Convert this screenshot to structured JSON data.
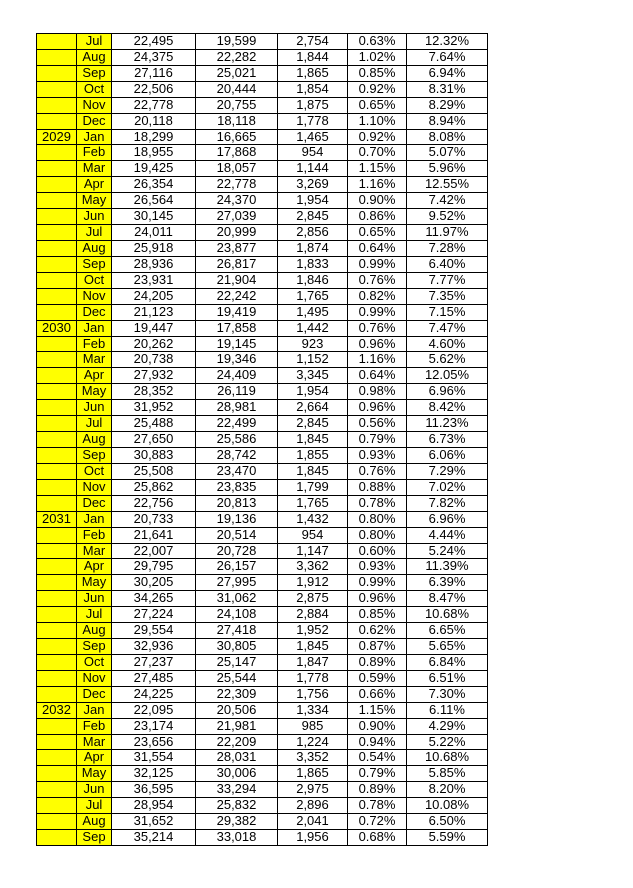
{
  "sheet": {
    "description": "Monthly data table with yellow year and month key columns",
    "highlight_color": "#FFFF00",
    "border_color": "#000000",
    "text_color": "#000000",
    "background_color": "#FFFFFF",
    "columns": [
      "year",
      "month",
      "value-1",
      "value-2",
      "value-3",
      "percent-1",
      "percent-2"
    ],
    "years_shown": [
      "2029",
      "2030",
      "2031",
      "2032"
    ],
    "rows": [
      [
        "",
        "Jul",
        "22,495",
        "19,599",
        "2,754",
        "0.63%",
        "12.32%"
      ],
      [
        "",
        "Aug",
        "24,375",
        "22,282",
        "1,844",
        "1.02%",
        "7.64%"
      ],
      [
        "",
        "Sep",
        "27,116",
        "25,021",
        "1,865",
        "0.85%",
        "6.94%"
      ],
      [
        "",
        "Oct",
        "22,506",
        "20,444",
        "1,854",
        "0.92%",
        "8.31%"
      ],
      [
        "",
        "Nov",
        "22,778",
        "20,755",
        "1,875",
        "0.65%",
        "8.29%"
      ],
      [
        "",
        "Dec",
        "20,118",
        "18,118",
        "1,778",
        "1.10%",
        "8.94%"
      ],
      [
        "2029",
        "Jan",
        "18,299",
        "16,665",
        "1,465",
        "0.92%",
        "8.08%"
      ],
      [
        "",
        "Feb",
        "18,955",
        "17,868",
        "954",
        "0.70%",
        "5.07%"
      ],
      [
        "",
        "Mar",
        "19,425",
        "18,057",
        "1,144",
        "1.15%",
        "5.96%"
      ],
      [
        "",
        "Apr",
        "26,354",
        "22,778",
        "3,269",
        "1.16%",
        "12.55%"
      ],
      [
        "",
        "May",
        "26,564",
        "24,370",
        "1,954",
        "0.90%",
        "7.42%"
      ],
      [
        "",
        "Jun",
        "30,145",
        "27,039",
        "2,845",
        "0.86%",
        "9.52%"
      ],
      [
        "",
        "Jul",
        "24,011",
        "20,999",
        "2,856",
        "0.65%",
        "11.97%"
      ],
      [
        "",
        "Aug",
        "25,918",
        "23,877",
        "1,874",
        "0.64%",
        "7.28%"
      ],
      [
        "",
        "Sep",
        "28,936",
        "26,817",
        "1,833",
        "0.99%",
        "6.40%"
      ],
      [
        "",
        "Oct",
        "23,931",
        "21,904",
        "1,846",
        "0.76%",
        "7.77%"
      ],
      [
        "",
        "Nov",
        "24,205",
        "22,242",
        "1,765",
        "0.82%",
        "7.35%"
      ],
      [
        "",
        "Dec",
        "21,123",
        "19,419",
        "1,495",
        "0.99%",
        "7.15%"
      ],
      [
        "2030",
        "Jan",
        "19,447",
        "17,858",
        "1,442",
        "0.76%",
        "7.47%"
      ],
      [
        "",
        "Feb",
        "20,262",
        "19,145",
        "923",
        "0.96%",
        "4.60%"
      ],
      [
        "",
        "Mar",
        "20,738",
        "19,346",
        "1,152",
        "1.16%",
        "5.62%"
      ],
      [
        "",
        "Apr",
        "27,932",
        "24,409",
        "3,345",
        "0.64%",
        "12.05%"
      ],
      [
        "",
        "May",
        "28,352",
        "26,119",
        "1,954",
        "0.98%",
        "6.96%"
      ],
      [
        "",
        "Jun",
        "31,952",
        "28,981",
        "2,664",
        "0.96%",
        "8.42%"
      ],
      [
        "",
        "Jul",
        "25,488",
        "22,499",
        "2,845",
        "0.56%",
        "11.23%"
      ],
      [
        "",
        "Aug",
        "27,650",
        "25,586",
        "1,845",
        "0.79%",
        "6.73%"
      ],
      [
        "",
        "Sep",
        "30,883",
        "28,742",
        "1,855",
        "0.93%",
        "6.06%"
      ],
      [
        "",
        "Oct",
        "25,508",
        "23,470",
        "1,845",
        "0.76%",
        "7.29%"
      ],
      [
        "",
        "Nov",
        "25,862",
        "23,835",
        "1,799",
        "0.88%",
        "7.02%"
      ],
      [
        "",
        "Dec",
        "22,756",
        "20,813",
        "1,765",
        "0.78%",
        "7.82%"
      ],
      [
        "2031",
        "Jan",
        "20,733",
        "19,136",
        "1,432",
        "0.80%",
        "6.96%"
      ],
      [
        "",
        "Feb",
        "21,641",
        "20,514",
        "954",
        "0.80%",
        "4.44%"
      ],
      [
        "",
        "Mar",
        "22,007",
        "20,728",
        "1,147",
        "0.60%",
        "5.24%"
      ],
      [
        "",
        "Apr",
        "29,795",
        "26,157",
        "3,362",
        "0.93%",
        "11.39%"
      ],
      [
        "",
        "May",
        "30,205",
        "27,995",
        "1,912",
        "0.99%",
        "6.39%"
      ],
      [
        "",
        "Jun",
        "34,265",
        "31,062",
        "2,875",
        "0.96%",
        "8.47%"
      ],
      [
        "",
        "Jul",
        "27,224",
        "24,108",
        "2,884",
        "0.85%",
        "10.68%"
      ],
      [
        "",
        "Aug",
        "29,554",
        "27,418",
        "1,952",
        "0.62%",
        "6.65%"
      ],
      [
        "",
        "Sep",
        "32,936",
        "30,805",
        "1,845",
        "0.87%",
        "5.65%"
      ],
      [
        "",
        "Oct",
        "27,237",
        "25,147",
        "1,847",
        "0.89%",
        "6.84%"
      ],
      [
        "",
        "Nov",
        "27,485",
        "25,544",
        "1,778",
        "0.59%",
        "6.51%"
      ],
      [
        "",
        "Dec",
        "24,225",
        "22,309",
        "1,756",
        "0.66%",
        "7.30%"
      ],
      [
        "2032",
        "Jan",
        "22,095",
        "20,506",
        "1,334",
        "1.15%",
        "6.11%"
      ],
      [
        "",
        "Feb",
        "23,174",
        "21,981",
        "985",
        "0.90%",
        "4.29%"
      ],
      [
        "",
        "Mar",
        "23,656",
        "22,209",
        "1,224",
        "0.94%",
        "5.22%"
      ],
      [
        "",
        "Apr",
        "31,554",
        "28,031",
        "3,352",
        "0.54%",
        "10.68%"
      ],
      [
        "",
        "May",
        "32,125",
        "30,006",
        "1,865",
        "0.79%",
        "5.85%"
      ],
      [
        "",
        "Jun",
        "36,595",
        "33,294",
        "2,975",
        "0.89%",
        "8.20%"
      ],
      [
        "",
        "Jul",
        "28,954",
        "25,832",
        "2,896",
        "0.78%",
        "10.08%"
      ],
      [
        "",
        "Aug",
        "31,652",
        "29,382",
        "2,041",
        "0.72%",
        "6.50%"
      ],
      [
        "",
        "Sep",
        "35,214",
        "33,018",
        "1,956",
        "0.68%",
        "5.59%"
      ]
    ]
  }
}
